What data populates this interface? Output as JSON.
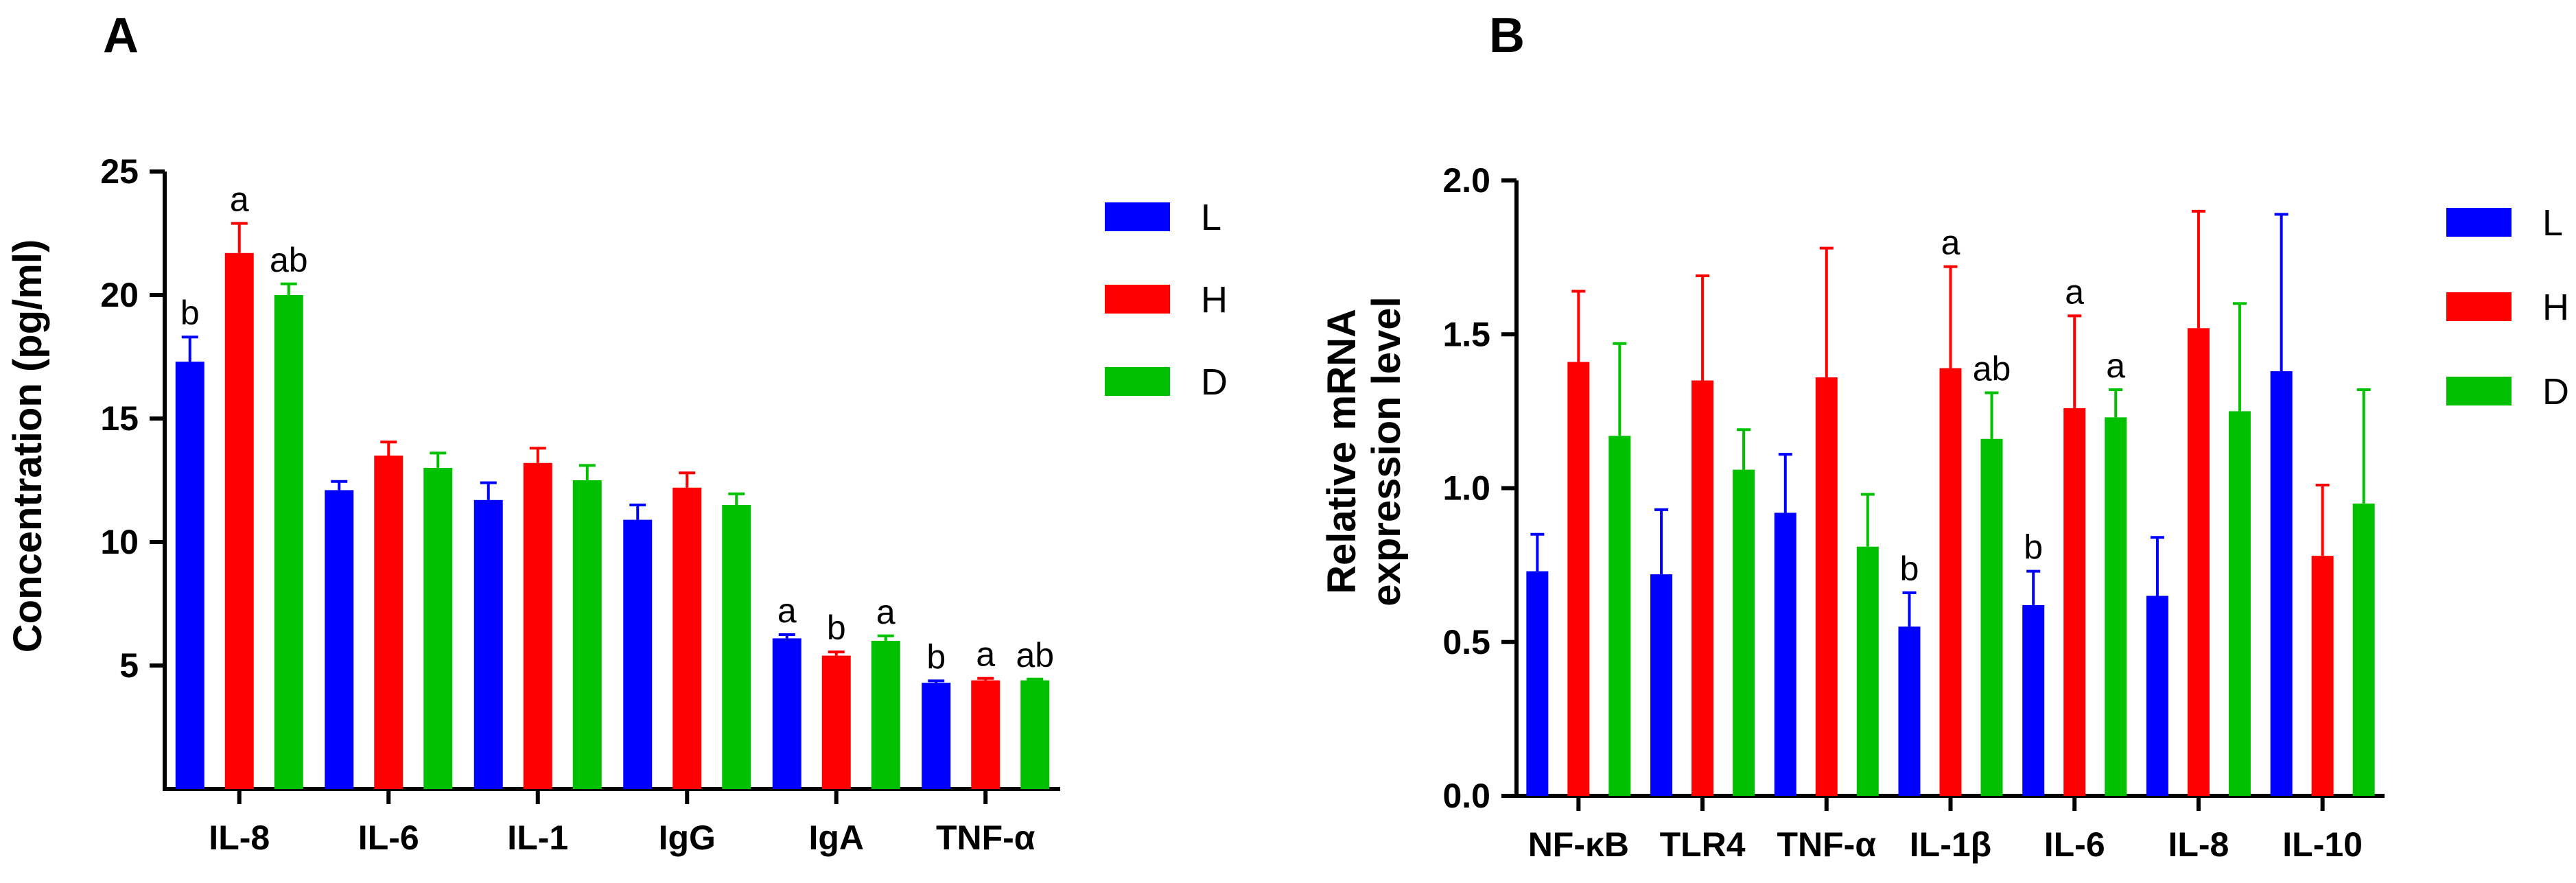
{
  "colors": {
    "L": "#0000ff",
    "H": "#ff0000",
    "D": "#00c000"
  },
  "chart_data": [
    {
      "panel": "A",
      "type": "bar",
      "title": "",
      "xlabel": "",
      "ylabel": "Concentration (pg/ml)",
      "ylim": [
        0,
        25
      ],
      "yticks": [
        5,
        10,
        15,
        20,
        25
      ],
      "categories": [
        "IL-8",
        "IL-6",
        "IL-1",
        "IgG",
        "IgA",
        "TNF-α"
      ],
      "series": [
        {
          "name": "L",
          "values": [
            17.3,
            12.1,
            11.7,
            10.9,
            6.1,
            4.3
          ],
          "errors": [
            1.0,
            0.35,
            0.7,
            0.6,
            0.15,
            0.08
          ],
          "labels": [
            "b",
            "",
            "",
            "",
            "a",
            "b"
          ]
        },
        {
          "name": "H",
          "values": [
            21.7,
            13.5,
            13.2,
            12.2,
            5.4,
            4.4
          ],
          "errors": [
            1.2,
            0.55,
            0.6,
            0.6,
            0.15,
            0.08
          ],
          "labels": [
            "a",
            "",
            "",
            "",
            "b",
            "a"
          ]
        },
        {
          "name": "D",
          "values": [
            20.0,
            13.0,
            12.5,
            11.5,
            6.0,
            4.4
          ],
          "errors": [
            0.45,
            0.6,
            0.6,
            0.45,
            0.2,
            0.05
          ],
          "labels": [
            "ab",
            "",
            "",
            "",
            "a",
            "ab"
          ]
        }
      ],
      "legend": [
        "L",
        "H",
        "D"
      ],
      "legend_position": "right"
    },
    {
      "panel": "B",
      "type": "bar",
      "title": "",
      "xlabel": "",
      "ylabel_lines": [
        "Relative mRNA",
        "expression level"
      ],
      "ylim": [
        0,
        2.0
      ],
      "yticks": [
        "0.0",
        "0.5",
        "1.0",
        "1.5",
        "2.0"
      ],
      "categories": [
        "NF-κB",
        "TLR4",
        "TNF-α",
        "IL-1β",
        "IL-6",
        "IL-8",
        "IL-10"
      ],
      "series": [
        {
          "name": "L",
          "values": [
            0.73,
            0.72,
            0.92,
            0.55,
            0.62,
            0.65,
            1.38
          ],
          "errors": [
            0.12,
            0.21,
            0.19,
            0.11,
            0.11,
            0.19,
            0.51
          ],
          "labels": [
            "",
            "",
            "",
            "b",
            "b",
            "",
            ""
          ]
        },
        {
          "name": "H",
          "values": [
            1.41,
            1.35,
            1.36,
            1.39,
            1.26,
            1.52,
            0.78
          ],
          "errors": [
            0.23,
            0.34,
            0.42,
            0.33,
            0.3,
            0.38,
            0.23
          ],
          "labels": [
            "",
            "",
            "",
            "a",
            "a",
            "",
            ""
          ]
        },
        {
          "name": "D",
          "values": [
            1.17,
            1.06,
            0.81,
            1.16,
            1.23,
            1.25,
            0.95
          ],
          "errors": [
            0.3,
            0.13,
            0.17,
            0.15,
            0.09,
            0.35,
            0.37
          ],
          "labels": [
            "",
            "",
            "",
            "ab",
            "a",
            "",
            ""
          ]
        }
      ],
      "legend": [
        "L",
        "H",
        "D"
      ],
      "legend_position": "right"
    }
  ]
}
